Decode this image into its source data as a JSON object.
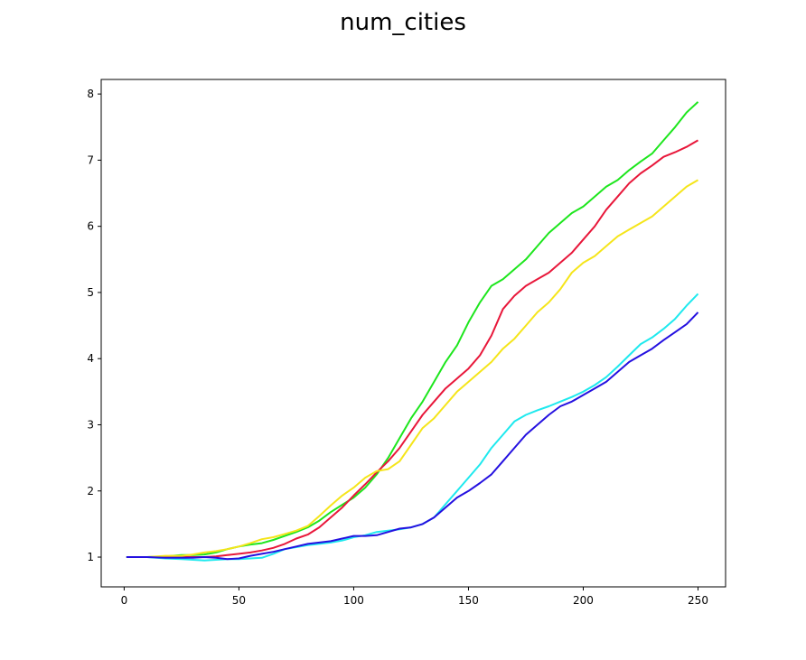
{
  "chart_data": {
    "type": "line",
    "title": "num_cities",
    "xlabel": "",
    "ylabel": "",
    "xlim": [
      -10,
      262
    ],
    "ylim": [
      0.55,
      8.22
    ],
    "x_ticks": [
      0,
      50,
      100,
      150,
      200,
      250
    ],
    "y_ticks": [
      1,
      2,
      3,
      4,
      5,
      6,
      7,
      8
    ],
    "grid": false,
    "legend": "none",
    "series": [
      {
        "color": "#1de61d",
        "points": [
          [
            1,
            1
          ],
          [
            10,
            1
          ],
          [
            18,
            1.01
          ],
          [
            25,
            1.03
          ],
          [
            30,
            1.03
          ],
          [
            35,
            1.04
          ],
          [
            40,
            1.07
          ],
          [
            45,
            1.12
          ],
          [
            50,
            1.16
          ],
          [
            55,
            1.19
          ],
          [
            60,
            1.21
          ],
          [
            65,
            1.26
          ],
          [
            70,
            1.32
          ],
          [
            75,
            1.38
          ],
          [
            80,
            1.45
          ],
          [
            85,
            1.55
          ],
          [
            90,
            1.68
          ],
          [
            95,
            1.79
          ],
          [
            100,
            1.9
          ],
          [
            105,
            2.05
          ],
          [
            110,
            2.25
          ],
          [
            115,
            2.5
          ],
          [
            120,
            2.8
          ],
          [
            125,
            3.1
          ],
          [
            130,
            3.35
          ],
          [
            135,
            3.65
          ],
          [
            140,
            3.95
          ],
          [
            145,
            4.2
          ],
          [
            150,
            4.55
          ],
          [
            155,
            4.85
          ],
          [
            160,
            5.1
          ],
          [
            165,
            5.2
          ],
          [
            170,
            5.35
          ],
          [
            175,
            5.5
          ],
          [
            180,
            5.7
          ],
          [
            185,
            5.9
          ],
          [
            190,
            6.05
          ],
          [
            195,
            6.2
          ],
          [
            200,
            6.3
          ],
          [
            205,
            6.45
          ],
          [
            210,
            6.6
          ],
          [
            215,
            6.7
          ],
          [
            220,
            6.85
          ],
          [
            225,
            6.98
          ],
          [
            230,
            7.1
          ],
          [
            235,
            7.3
          ],
          [
            240,
            7.5
          ],
          [
            245,
            7.72
          ],
          [
            250,
            7.88
          ]
        ]
      },
      {
        "color": "#e8173a",
        "points": [
          [
            1,
            1
          ],
          [
            10,
            1
          ],
          [
            18,
            1
          ],
          [
            25,
            1
          ],
          [
            30,
            1
          ],
          [
            35,
            1
          ],
          [
            40,
            1.01
          ],
          [
            45,
            1.03
          ],
          [
            50,
            1.05
          ],
          [
            55,
            1.07
          ],
          [
            60,
            1.1
          ],
          [
            65,
            1.14
          ],
          [
            70,
            1.2
          ],
          [
            75,
            1.28
          ],
          [
            80,
            1.34
          ],
          [
            85,
            1.45
          ],
          [
            90,
            1.6
          ],
          [
            95,
            1.75
          ],
          [
            100,
            1.93
          ],
          [
            105,
            2.1
          ],
          [
            110,
            2.28
          ],
          [
            115,
            2.45
          ],
          [
            120,
            2.65
          ],
          [
            125,
            2.9
          ],
          [
            130,
            3.15
          ],
          [
            135,
            3.35
          ],
          [
            140,
            3.55
          ],
          [
            145,
            3.7
          ],
          [
            150,
            3.85
          ],
          [
            155,
            4.05
          ],
          [
            160,
            4.35
          ],
          [
            165,
            4.75
          ],
          [
            170,
            4.95
          ],
          [
            175,
            5.1
          ],
          [
            180,
            5.2
          ],
          [
            185,
            5.3
          ],
          [
            190,
            5.45
          ],
          [
            195,
            5.6
          ],
          [
            200,
            5.8
          ],
          [
            205,
            6.0
          ],
          [
            210,
            6.25
          ],
          [
            215,
            6.45
          ],
          [
            220,
            6.65
          ],
          [
            225,
            6.8
          ],
          [
            230,
            6.92
          ],
          [
            235,
            7.05
          ],
          [
            240,
            7.12
          ],
          [
            245,
            7.2
          ],
          [
            250,
            7.3
          ]
        ]
      },
      {
        "color": "#f5e51a",
        "points": [
          [
            1,
            1
          ],
          [
            10,
            1
          ],
          [
            18,
            1.02
          ],
          [
            25,
            1.02
          ],
          [
            30,
            1.04
          ],
          [
            35,
            1.07
          ],
          [
            40,
            1.09
          ],
          [
            45,
            1.12
          ],
          [
            50,
            1.16
          ],
          [
            55,
            1.21
          ],
          [
            60,
            1.27
          ],
          [
            65,
            1.3
          ],
          [
            70,
            1.35
          ],
          [
            75,
            1.4
          ],
          [
            80,
            1.47
          ],
          [
            85,
            1.62
          ],
          [
            90,
            1.78
          ],
          [
            95,
            1.93
          ],
          [
            100,
            2.05
          ],
          [
            105,
            2.2
          ],
          [
            110,
            2.3
          ],
          [
            115,
            2.33
          ],
          [
            120,
            2.45
          ],
          [
            125,
            2.7
          ],
          [
            130,
            2.95
          ],
          [
            135,
            3.1
          ],
          [
            140,
            3.3
          ],
          [
            145,
            3.5
          ],
          [
            150,
            3.65
          ],
          [
            155,
            3.8
          ],
          [
            160,
            3.95
          ],
          [
            165,
            4.15
          ],
          [
            170,
            4.3
          ],
          [
            175,
            4.5
          ],
          [
            180,
            4.7
          ],
          [
            185,
            4.85
          ],
          [
            190,
            5.05
          ],
          [
            195,
            5.3
          ],
          [
            200,
            5.45
          ],
          [
            205,
            5.55
          ],
          [
            210,
            5.7
          ],
          [
            215,
            5.85
          ],
          [
            220,
            5.95
          ],
          [
            225,
            6.05
          ],
          [
            230,
            6.15
          ],
          [
            235,
            6.3
          ],
          [
            240,
            6.45
          ],
          [
            245,
            6.6
          ],
          [
            250,
            6.7
          ]
        ]
      },
      {
        "color": "#1ee9ee",
        "points": [
          [
            1,
            1
          ],
          [
            10,
            1
          ],
          [
            18,
            0.98
          ],
          [
            25,
            0.97
          ],
          [
            30,
            0.96
          ],
          [
            35,
            0.95
          ],
          [
            40,
            0.96
          ],
          [
            45,
            0.97
          ],
          [
            50,
            0.97
          ],
          [
            55,
            0.98
          ],
          [
            60,
            0.99
          ],
          [
            65,
            1.05
          ],
          [
            70,
            1.12
          ],
          [
            75,
            1.15
          ],
          [
            80,
            1.18
          ],
          [
            85,
            1.2
          ],
          [
            90,
            1.22
          ],
          [
            95,
            1.25
          ],
          [
            100,
            1.3
          ],
          [
            105,
            1.33
          ],
          [
            110,
            1.38
          ],
          [
            115,
            1.4
          ],
          [
            120,
            1.42
          ],
          [
            125,
            1.45
          ],
          [
            130,
            1.5
          ],
          [
            135,
            1.6
          ],
          [
            140,
            1.8
          ],
          [
            145,
            2.0
          ],
          [
            150,
            2.2
          ],
          [
            155,
            2.4
          ],
          [
            160,
            2.65
          ],
          [
            165,
            2.85
          ],
          [
            170,
            3.05
          ],
          [
            175,
            3.15
          ],
          [
            180,
            3.22
          ],
          [
            185,
            3.28
          ],
          [
            190,
            3.35
          ],
          [
            195,
            3.42
          ],
          [
            200,
            3.5
          ],
          [
            205,
            3.6
          ],
          [
            210,
            3.72
          ],
          [
            215,
            3.88
          ],
          [
            220,
            4.05
          ],
          [
            225,
            4.22
          ],
          [
            230,
            4.32
          ],
          [
            235,
            4.45
          ],
          [
            240,
            4.6
          ],
          [
            245,
            4.8
          ],
          [
            250,
            4.98
          ]
        ]
      },
      {
        "color": "#2410e0",
        "points": [
          [
            1,
            1
          ],
          [
            10,
            1
          ],
          [
            18,
            0.99
          ],
          [
            25,
            0.99
          ],
          [
            30,
            0.99
          ],
          [
            35,
            1.0
          ],
          [
            40,
            0.99
          ],
          [
            45,
            0.97
          ],
          [
            50,
            0.98
          ],
          [
            55,
            1.02
          ],
          [
            60,
            1.05
          ],
          [
            65,
            1.08
          ],
          [
            70,
            1.12
          ],
          [
            75,
            1.16
          ],
          [
            80,
            1.2
          ],
          [
            85,
            1.22
          ],
          [
            90,
            1.24
          ],
          [
            95,
            1.28
          ],
          [
            100,
            1.32
          ],
          [
            105,
            1.32
          ],
          [
            110,
            1.33
          ],
          [
            115,
            1.38
          ],
          [
            120,
            1.43
          ],
          [
            125,
            1.45
          ],
          [
            130,
            1.5
          ],
          [
            135,
            1.6
          ],
          [
            140,
            1.75
          ],
          [
            145,
            1.9
          ],
          [
            150,
            2.0
          ],
          [
            155,
            2.12
          ],
          [
            160,
            2.25
          ],
          [
            165,
            2.45
          ],
          [
            170,
            2.65
          ],
          [
            175,
            2.85
          ],
          [
            180,
            3.0
          ],
          [
            185,
            3.15
          ],
          [
            190,
            3.28
          ],
          [
            195,
            3.35
          ],
          [
            200,
            3.45
          ],
          [
            205,
            3.55
          ],
          [
            210,
            3.65
          ],
          [
            215,
            3.8
          ],
          [
            220,
            3.95
          ],
          [
            225,
            4.05
          ],
          [
            230,
            4.15
          ],
          [
            235,
            4.28
          ],
          [
            240,
            4.4
          ],
          [
            245,
            4.52
          ],
          [
            250,
            4.7
          ]
        ]
      }
    ]
  }
}
